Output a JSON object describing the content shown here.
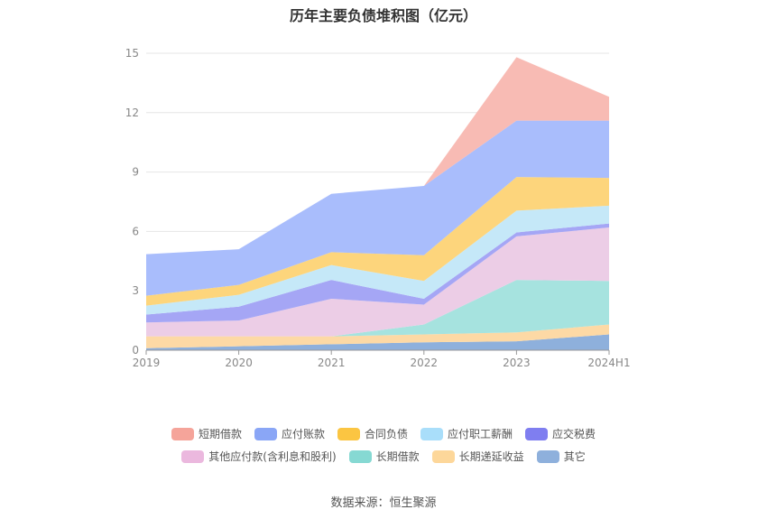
{
  "title": "历年主要负债堆积图（亿元）",
  "source": "数据来源：恒生聚源",
  "chart_data": {
    "type": "area",
    "stacked": true,
    "categories": [
      "2019",
      "2020",
      "2021",
      "2022",
      "2023",
      "2024H1"
    ],
    "ylim": [
      0,
      15
    ],
    "yticks": [
      0,
      3,
      6,
      9,
      12,
      15
    ],
    "grid": true,
    "legend_position": "bottom",
    "series": [
      {
        "name": "其它",
        "color": "#8eb0dc",
        "values": [
          0.1,
          0.2,
          0.3,
          0.4,
          0.45,
          0.8
        ]
      },
      {
        "name": "长期递延收益",
        "color": "#fdd9a5",
        "values": [
          0.6,
          0.5,
          0.4,
          0.4,
          0.45,
          0.5
        ]
      },
      {
        "name": "长期借款",
        "color": "#a6e3df",
        "values": [
          0.0,
          0.0,
          0.0,
          0.5,
          2.65,
          2.2
        ]
      },
      {
        "name": "其他应付款(含利息和股利)",
        "color": "#eccde6",
        "values": [
          0.7,
          0.8,
          1.9,
          1.0,
          2.2,
          2.7
        ]
      },
      {
        "name": "应交税费",
        "color": "#a5a6f5",
        "values": [
          0.4,
          0.7,
          0.95,
          0.3,
          0.2,
          0.2
        ]
      },
      {
        "name": "应付职工薪酬",
        "color": "#c5e8f8",
        "values": [
          0.45,
          0.6,
          0.75,
          0.9,
          1.1,
          0.9
        ]
      },
      {
        "name": "合同负债",
        "color": "#fdd57c",
        "values": [
          0.5,
          0.5,
          0.65,
          1.3,
          1.7,
          1.4
        ]
      },
      {
        "name": "应付账款",
        "color": "#a9bdfc",
        "values": [
          2.1,
          1.8,
          2.95,
          3.5,
          2.85,
          2.9
        ]
      },
      {
        "name": "短期借款",
        "color": "#f8bbb4",
        "values": [
          0.0,
          0.0,
          0.0,
          0.0,
          3.2,
          1.2
        ]
      }
    ]
  },
  "legend": {
    "row1": [
      {
        "name": "短期借款",
        "color": "#f5a49a"
      },
      {
        "name": "应付账款",
        "color": "#8aa6f6"
      },
      {
        "name": "合同负债",
        "color": "#fbc542"
      },
      {
        "name": "应付职工薪酬",
        "color": "#a9defa"
      },
      {
        "name": "应交税费",
        "color": "#7f7ef0"
      }
    ],
    "row2": [
      {
        "name": "其他应付款(含利息和股利)",
        "color": "#ebb8de"
      },
      {
        "name": "长期借款",
        "color": "#86d9d3"
      },
      {
        "name": "长期递延收益",
        "color": "#fdd79a"
      },
      {
        "name": "其它",
        "color": "#8eb0dc"
      }
    ]
  }
}
